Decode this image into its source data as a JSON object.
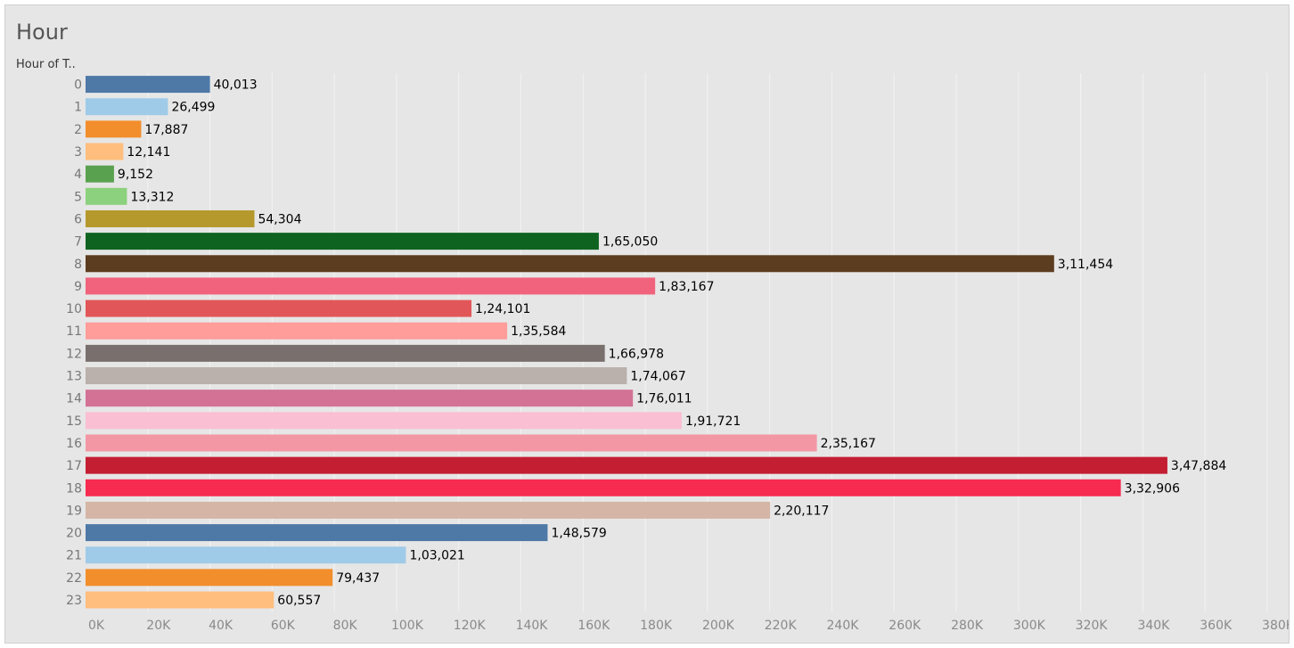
{
  "chart_data": {
    "type": "bar",
    "orientation": "horizontal",
    "title": "Hour",
    "category_header": "Hour of T..",
    "categories": [
      "0",
      "1",
      "2",
      "3",
      "4",
      "5",
      "6",
      "7",
      "8",
      "9",
      "10",
      "11",
      "12",
      "13",
      "14",
      "15",
      "16",
      "17",
      "18",
      "19",
      "20",
      "21",
      "22",
      "23"
    ],
    "values": [
      40013,
      26499,
      17887,
      12141,
      9152,
      13312,
      54304,
      165050,
      311454,
      183167,
      124101,
      135584,
      166978,
      174067,
      176011,
      191721,
      235167,
      347884,
      332906,
      220117,
      148579,
      103021,
      79437,
      60557
    ],
    "value_labels": [
      "40,013",
      "26,499",
      "17,887",
      "12,141",
      "9,152",
      "13,312",
      "54,304",
      "1,65,050",
      "3,11,454",
      "1,83,167",
      "1,24,101",
      "1,35,584",
      "1,66,978",
      "1,74,067",
      "1,76,011",
      "1,91,721",
      "2,35,167",
      "3,47,884",
      "3,32,906",
      "2,20,117",
      "1,48,579",
      "1,03,021",
      "79,437",
      "60,557"
    ],
    "colors": [
      "#4e79a7",
      "#a0cbe8",
      "#f28e2b",
      "#ffbe7d",
      "#59a14f",
      "#8cd17d",
      "#b6992d",
      "#0f6321",
      "#5c3d1f",
      "#f1637d",
      "#e15759",
      "#ff9d9a",
      "#79706e",
      "#bab0ac",
      "#d37295",
      "#fabfd2",
      "#f497a5",
      "#c41e33",
      "#f72a50",
      "#d4b5a6",
      "#4e79a7",
      "#a0cbe8",
      "#f28e2b",
      "#ffbe7d"
    ],
    "xlim": [
      0,
      380000
    ],
    "x_ticks": [
      0,
      20000,
      40000,
      60000,
      80000,
      100000,
      120000,
      140000,
      160000,
      180000,
      200000,
      220000,
      240000,
      260000,
      280000,
      300000,
      320000,
      340000,
      360000,
      380000
    ],
    "x_tick_labels": [
      "0K",
      "20K",
      "40K",
      "60K",
      "80K",
      "100K",
      "120K",
      "140K",
      "160K",
      "180K",
      "200K",
      "220K",
      "240K",
      "260K",
      "280K",
      "300K",
      "320K",
      "340K",
      "360K",
      "380K"
    ],
    "grid": true,
    "legend": "none"
  }
}
